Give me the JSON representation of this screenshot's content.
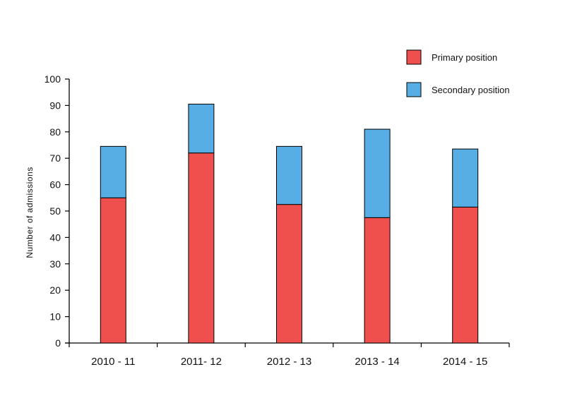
{
  "chart_data": {
    "type": "bar",
    "stacked": true,
    "categories": [
      "2010 - 11",
      "2011- 12",
      "2012 - 13",
      "2013 - 14",
      "2014 - 15"
    ],
    "series": [
      {
        "name": "Primary position",
        "color": "#f0504d",
        "values": [
          55,
          72,
          52.5,
          47.5,
          51.5
        ]
      },
      {
        "name": "Secondary position",
        "color": "#56aee4",
        "values": [
          19.5,
          18.5,
          22,
          33.5,
          22
        ]
      }
    ],
    "ylabel": "Number of admissions",
    "xlabel": "",
    "ylim": [
      0,
      100
    ],
    "yticks": [
      0,
      10,
      20,
      30,
      40,
      50,
      60,
      70,
      80,
      90,
      100
    ],
    "legend_position": "top-right",
    "grid": false
  }
}
